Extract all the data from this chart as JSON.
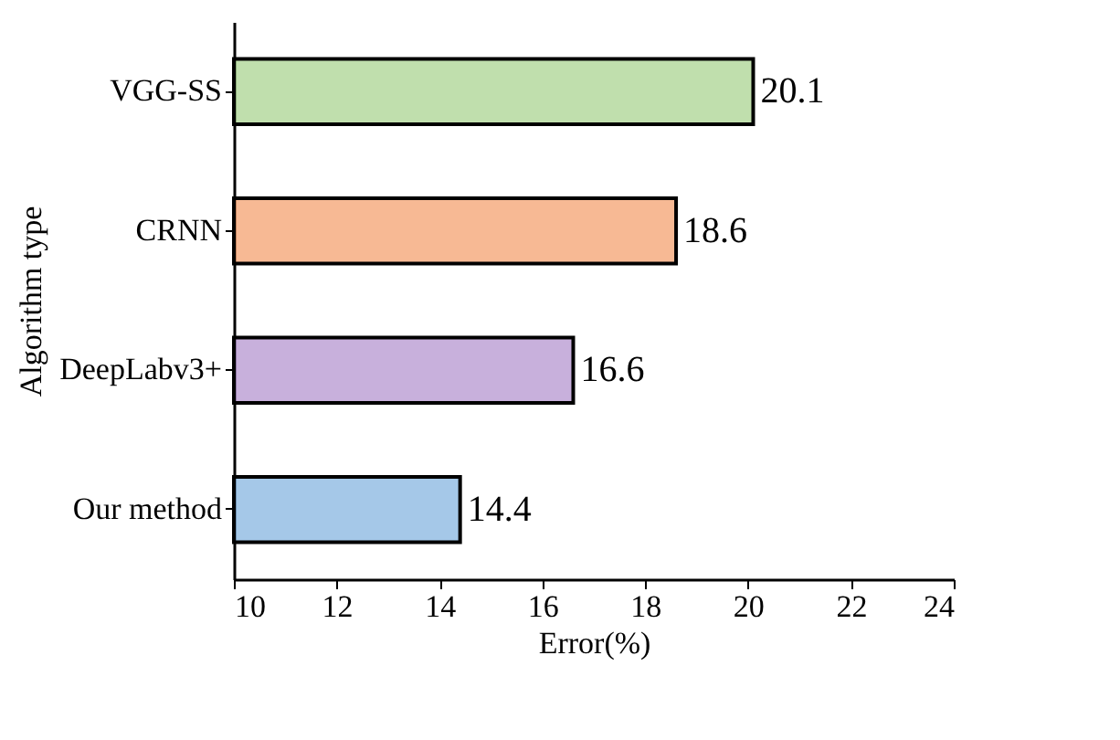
{
  "chart_data": {
    "type": "bar",
    "orientation": "horizontal",
    "xlabel": "Error(%)",
    "ylabel": "Algorithm type",
    "categories": [
      "VGG-SS",
      "CRNN",
      "DeepLabv3+",
      "Our method"
    ],
    "values": [
      20.1,
      18.6,
      16.6,
      14.4
    ],
    "colors": [
      "#8cc56a",
      "#f07f3c",
      "#9b6fc0",
      "#5b9bd5"
    ],
    "xlim": [
      10,
      24
    ],
    "xticks": [
      10,
      12,
      14,
      16,
      18,
      20,
      22,
      24
    ],
    "data_labels": true
  }
}
